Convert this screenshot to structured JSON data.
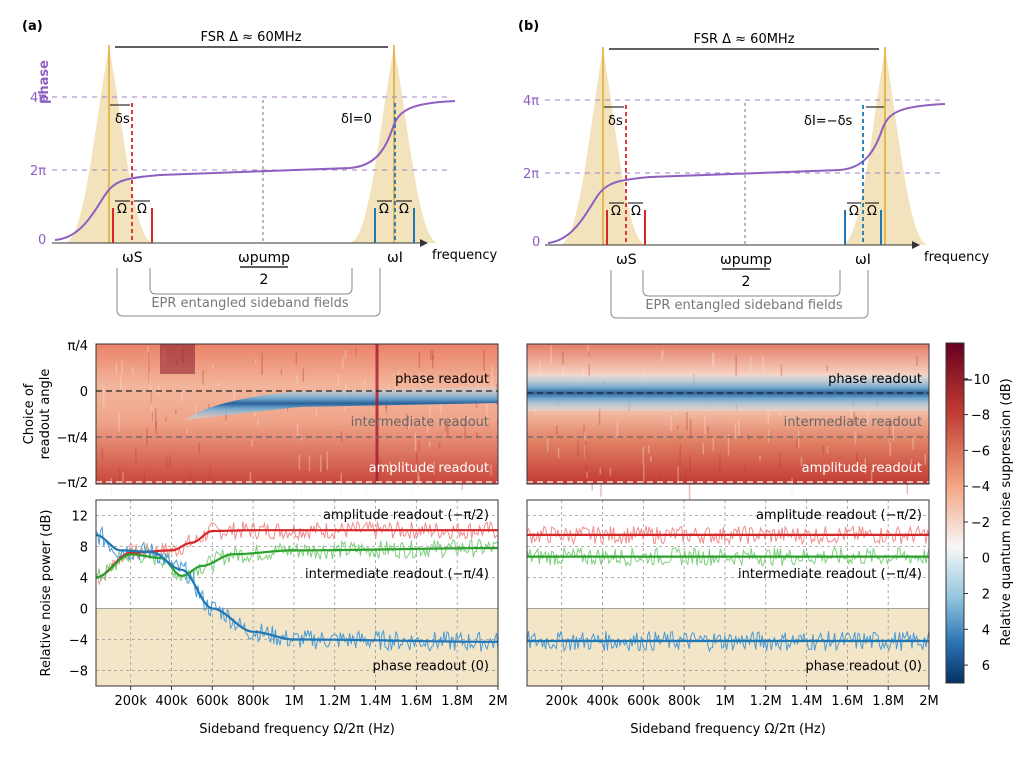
{
  "figure": {
    "panel_a_label": "(a)",
    "panel_b_label": "(b)",
    "colorbar_label": "Relative quantum noise suppression (dB)",
    "colorbar_ticks": [
      "−10",
      "−8",
      "−6",
      "−4",
      "−2",
      "0",
      "2",
      "4",
      "6"
    ]
  },
  "chart_data": [
    {
      "id": "schematic_a",
      "type": "line",
      "title": "FSR Δ ≈ 60MHz",
      "ylabel": "phase",
      "xlabel": "frequency",
      "y_ticks": [
        "0",
        "2π",
        "4π"
      ],
      "labels": {
        "omega_s": "ωS",
        "omega_i": "ωI",
        "pump_num": "ωpump",
        "pump_den": "2",
        "epr": "EPR entangled sideband fields",
        "delta_s": "δs",
        "delta_i": "δI=0",
        "omega": "Ω"
      }
    },
    {
      "id": "schematic_b",
      "type": "line",
      "title": "FSR Δ ≈ 60MHz",
      "xlabel": "frequency",
      "y_ticks": [
        "0",
        "2π",
        "4π"
      ],
      "labels": {
        "omega_s": "ωS",
        "omega_i": "ωI",
        "pump_num": "ωpump",
        "pump_den": "2",
        "epr": "EPR entangled sideband fields",
        "delta_s": "δs",
        "delta_i": "δI=−δs",
        "omega": "Ω"
      }
    },
    {
      "id": "heatmap_a",
      "type": "heatmap",
      "ylabel_1": "Choice of",
      "ylabel_2": "readout angle",
      "y_ticks": [
        "π/4",
        "0",
        "−π/4",
        "−π/2"
      ],
      "annotations": [
        "phase readout",
        "intermediate readout",
        "amplitude readout"
      ]
    },
    {
      "id": "heatmap_b",
      "type": "heatmap",
      "annotations": [
        "phase readout",
        "intermediate readout",
        "amplitude readout"
      ]
    },
    {
      "id": "noise_a",
      "type": "line",
      "xlabel": "Sideband frequency Ω/2π (Hz)",
      "ylabel": "Relative noise power (dB)",
      "x_ticks": [
        "200k",
        "400k",
        "600k",
        "800k",
        "1M",
        "1.2M",
        "1.4M",
        "1.6M",
        "1.8M",
        "2M"
      ],
      "y_ticks": [
        "12",
        "8",
        "4",
        "0",
        "−4",
        "−8"
      ],
      "xlim": [
        30000,
        2000000
      ],
      "ylim": [
        -10,
        14
      ],
      "series": [
        {
          "name": "amplitude readout (−π/2)",
          "color": "#d62728",
          "x": [
            30000,
            200000,
            400000,
            500000,
            600000,
            800000,
            1000000,
            2000000
          ],
          "values": [
            4,
            7.2,
            7.5,
            8.5,
            10,
            10.1,
            10.1,
            10.1
          ]
        },
        {
          "name": "intermediate readout (−π/4)",
          "color": "#2ca02c",
          "x": [
            30000,
            200000,
            350000,
            450000,
            550000,
            700000,
            1000000,
            2000000
          ],
          "values": [
            4,
            7,
            6.5,
            4.2,
            5.5,
            7,
            7.5,
            7.8
          ]
        },
        {
          "name": "phase readout (0)",
          "color": "#1f77b4",
          "x": [
            30000,
            150000,
            300000,
            450000,
            600000,
            800000,
            1000000,
            2000000
          ],
          "values": [
            9.5,
            7.5,
            7.3,
            5,
            0,
            -3,
            -4,
            -4.3
          ]
        }
      ]
    },
    {
      "id": "noise_b",
      "type": "line",
      "xlabel": "Sideband frequency Ω/2π (Hz)",
      "x_ticks": [
        "200k",
        "400k",
        "600k",
        "800k",
        "1M",
        "1.2M",
        "1.4M",
        "1.6M",
        "1.8M",
        "2M"
      ],
      "xlim": [
        30000,
        2000000
      ],
      "ylim": [
        -10,
        14
      ],
      "series": [
        {
          "name": "amplitude readout (−π/2)",
          "color": "#d62728",
          "x": [
            30000,
            2000000
          ],
          "values": [
            9.5,
            9.5
          ]
        },
        {
          "name": "intermediate readout (−π/4)",
          "color": "#2ca02c",
          "x": [
            30000,
            2000000
          ],
          "values": [
            6.7,
            6.7
          ]
        },
        {
          "name": "phase readout (0)",
          "color": "#1f77b4",
          "x": [
            30000,
            2000000
          ],
          "values": [
            -4.2,
            -4.2
          ]
        }
      ]
    }
  ]
}
